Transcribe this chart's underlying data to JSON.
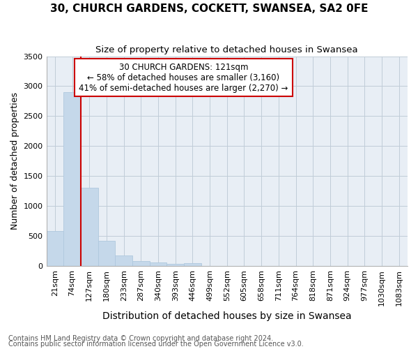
{
  "title": "30, CHURCH GARDENS, COCKETT, SWANSEA, SA2 0FE",
  "subtitle": "Size of property relative to detached houses in Swansea",
  "xlabel": "Distribution of detached houses by size in Swansea",
  "ylabel": "Number of detached properties",
  "categories": [
    "21sqm",
    "74sqm",
    "127sqm",
    "180sqm",
    "233sqm",
    "287sqm",
    "340sqm",
    "393sqm",
    "446sqm",
    "499sqm",
    "552sqm",
    "605sqm",
    "658sqm",
    "711sqm",
    "764sqm",
    "818sqm",
    "871sqm",
    "924sqm",
    "977sqm",
    "1030sqm",
    "1083sqm"
  ],
  "values": [
    580,
    2900,
    1300,
    420,
    175,
    75,
    55,
    35,
    50,
    0,
    0,
    0,
    0,
    0,
    0,
    0,
    0,
    0,
    0,
    0,
    0
  ],
  "bar_color": "#c5d8ea",
  "bar_edge_color": "#afc8de",
  "vline_x": 2,
  "vline_color": "#cc0000",
  "annotation_title": "30 CHURCH GARDENS: 121sqm",
  "annotation_line1": "← 58% of detached houses are smaller (3,160)",
  "annotation_line2": "41% of semi-detached houses are larger (2,270) →",
  "annotation_box_color": "#ffffff",
  "annotation_box_edge_color": "#cc0000",
  "footnote1": "Contains HM Land Registry data © Crown copyright and database right 2024.",
  "footnote2": "Contains public sector information licensed under the Open Government Licence v3.0.",
  "ylim": [
    0,
    3500
  ],
  "yticks": [
    0,
    500,
    1000,
    1500,
    2000,
    2500,
    3000,
    3500
  ],
  "title_fontsize": 11,
  "subtitle_fontsize": 9.5,
  "xlabel_fontsize": 10,
  "ylabel_fontsize": 9,
  "tick_fontsize": 8,
  "annotation_fontsize": 8.5,
  "footnote_fontsize": 7,
  "background_color": "#ffffff",
  "plot_bg_color": "#e8eef5",
  "grid_color": "#c0ccd8"
}
